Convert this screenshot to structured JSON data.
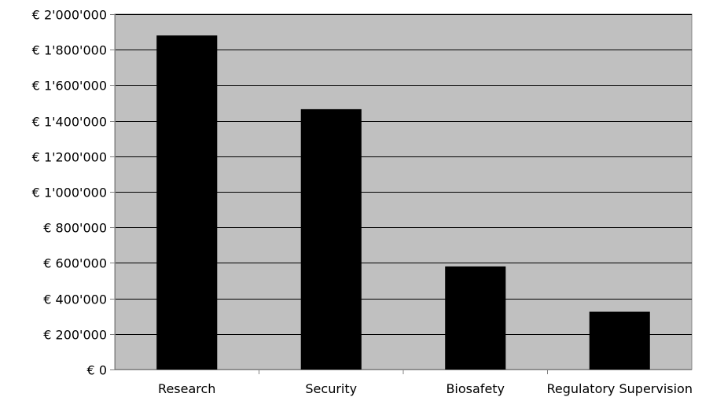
{
  "chart_data": {
    "type": "bar",
    "categories": [
      "Research",
      "Security",
      "Biosafety",
      "Regulatory Supervision"
    ],
    "values": [
      1880000,
      1465000,
      580000,
      325000
    ],
    "title": "",
    "xlabel": "",
    "ylabel": "",
    "ylim": [
      0,
      2000000
    ],
    "ytick_values": [
      0,
      200000,
      400000,
      600000,
      800000,
      1000000,
      1200000,
      1400000,
      1600000,
      1800000,
      2000000
    ],
    "ytick_labels": [
      "€ 0",
      "€ 200'000",
      "€ 400'000",
      "€ 600'000",
      "€ 800'000",
      "€ 1'000'000",
      "€ 1'200'000",
      "€ 1'400'000",
      "€ 1'600'000",
      "€ 1'800'000",
      "€ 2'000'000"
    ],
    "grid": true,
    "legend": "none",
    "colors": {
      "plot_background": "#c0c0c0",
      "bar": "#000000",
      "gridline": "#000000"
    }
  }
}
